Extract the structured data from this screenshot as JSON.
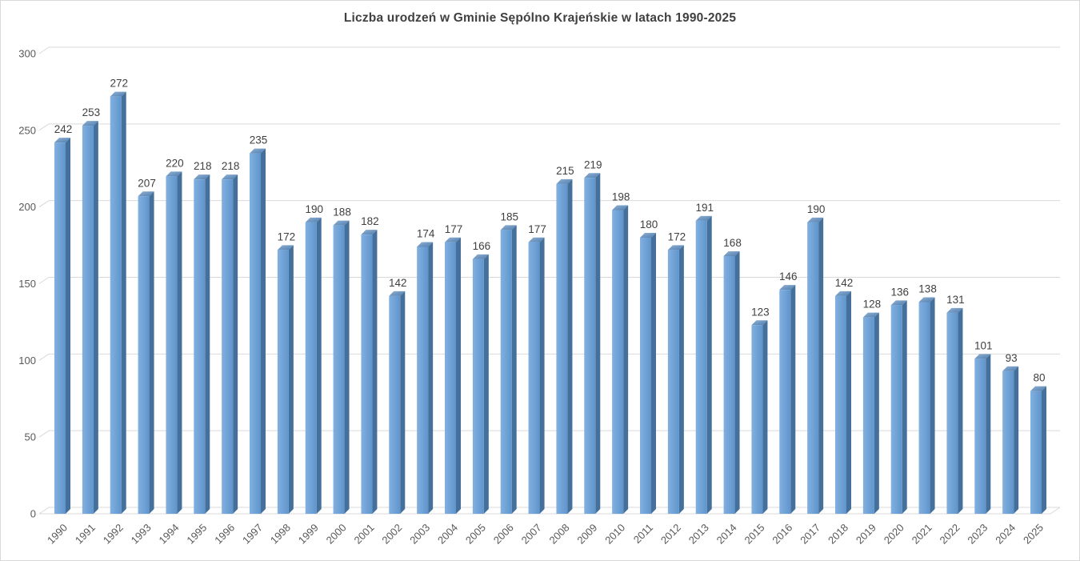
{
  "chart_data": {
    "type": "bar",
    "style": "3d-column",
    "title": "Liczba urodzeń w Gminie Sępólno Krajeńskie w latach 1990-2025",
    "xlabel": "",
    "ylabel": "",
    "categories": [
      "1990",
      "1991",
      "1992",
      "1993",
      "1994",
      "1995",
      "1996",
      "1997",
      "1998",
      "1999",
      "2000",
      "2001",
      "2002",
      "2003",
      "2004",
      "2005",
      "2006",
      "2007",
      "2008",
      "2009",
      "2010",
      "2011",
      "2012",
      "2013",
      "2014",
      "2015",
      "2016",
      "2017",
      "2018",
      "2019",
      "2020",
      "2021",
      "2022",
      "2023",
      "2024",
      "2025"
    ],
    "values": [
      242,
      253,
      272,
      207,
      220,
      218,
      218,
      235,
      172,
      190,
      188,
      182,
      142,
      174,
      177,
      166,
      185,
      177,
      215,
      219,
      198,
      180,
      172,
      191,
      168,
      123,
      146,
      190,
      142,
      128,
      136,
      138,
      131,
      101,
      93,
      80
    ],
    "ylim": [
      0,
      300
    ],
    "yticks": [
      0,
      50,
      100,
      150,
      200,
      250,
      300
    ],
    "grid": true,
    "legend": "none",
    "data_labels": true,
    "x_label_rotation": -45,
    "colors": {
      "bar_front_light": "#82B0E0",
      "bar_front_dark": "#5F95CC",
      "bar_side": "#44709B",
      "bar_top_light": "#93B3D6",
      "bar_top_dark": "#4E7CAC",
      "gridline": "#D9D9D9",
      "axis_label": "#595959",
      "value_label": "#404040",
      "title": "#404040",
      "border": "#D9D9D9",
      "background": "#FFFFFF"
    }
  }
}
